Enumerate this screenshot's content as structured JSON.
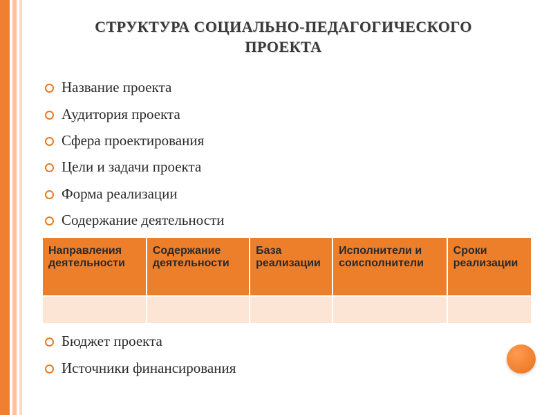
{
  "title": "СТРУКТУРА СОЦИАЛЬНО-ПЕДАГОГИЧЕСКОГО ПРОЕКТА",
  "bullets_top": [
    "Название проекта",
    "Аудитория проекта",
    "Сфера проектирования",
    "Цели и задачи проекта",
    "Форма реализации",
    "Содержание деятельности"
  ],
  "table": {
    "columns": [
      "Направления деятельности",
      "Содержание деятельности",
      "База реализации",
      "Исполнители и соисполнители",
      "Сроки реализации"
    ],
    "header_bg": "#ee7f2a",
    "body_bg": "#fde5d6",
    "border_color": "#ffffff",
    "header_fontsize": 16,
    "column_widths": [
      "20%",
      "20%",
      "20%",
      "20%",
      "20%"
    ]
  },
  "bullets_bottom": [
    "Бюджет проекта",
    "Источники финансирования"
  ],
  "colors": {
    "accent": "#e67a1e",
    "stripe1": "#f08030",
    "stripe3": "#ffbfa0",
    "stripe5": "#ffd8c8",
    "text": "#2a2a2a",
    "title": "#3a3a3a"
  },
  "typography": {
    "title_fontsize": 22,
    "bullet_fontsize": 21,
    "font_family": "Georgia"
  }
}
